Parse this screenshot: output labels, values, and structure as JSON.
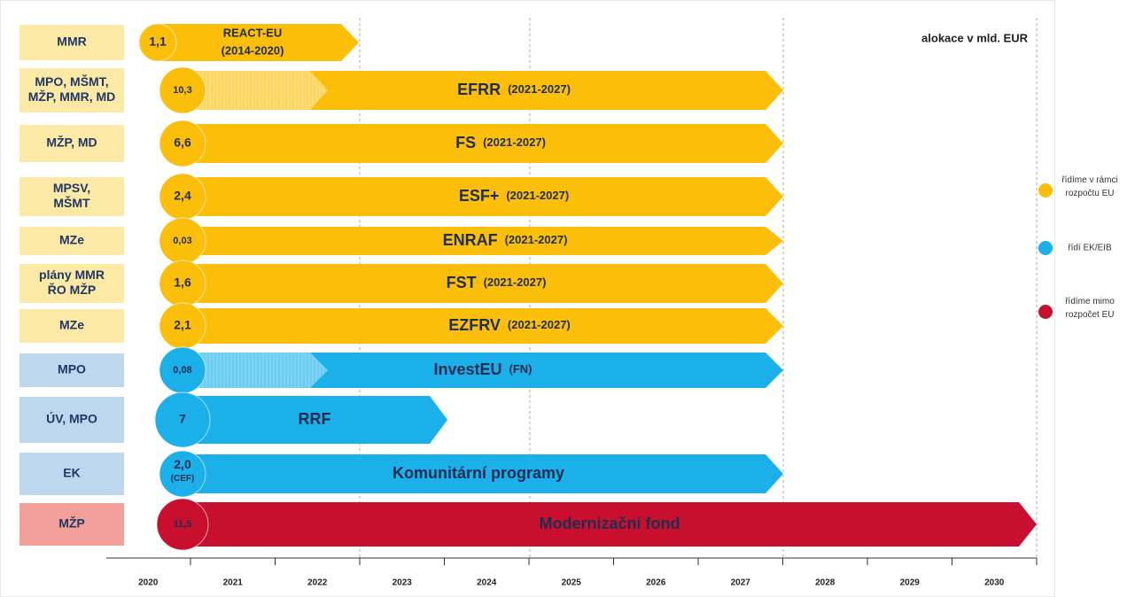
{
  "note": "alokace v mld. EUR",
  "rows": [
    {
      "agency": [
        "MMR"
      ],
      "amount": [
        "1,1"
      ],
      "program": "REACT-EU",
      "period": "(2014-2020)",
      "color": "#fbbf0a"
    },
    {
      "agency": [
        "MPO, MŠMT,",
        "MŽP, MMR, MD"
      ],
      "amount": [
        "10,3"
      ],
      "program": "EFRR",
      "period": "(2021-2027)",
      "color": "#fbbf0a"
    },
    {
      "agency": [
        "MŽP, MD"
      ],
      "amount": [
        "6,6"
      ],
      "program": "FS",
      "period": "(2021-2027)",
      "color": "#fbbf0a"
    },
    {
      "agency": [
        "MPSV,",
        "MŠMT"
      ],
      "amount": [
        "2,4"
      ],
      "program": "ESF+",
      "period": "(2021-2027)",
      "color": "#fbbf0a"
    },
    {
      "agency": [
        "MZe"
      ],
      "amount": [
        "0,03"
      ],
      "program": "ENRAF",
      "period": "(2021-2027)",
      "color": "#fbbf0a"
    },
    {
      "agency": [
        "plány MMR",
        "ŘO MŽP"
      ],
      "amount": [
        "1,6"
      ],
      "program": "FST",
      "period": "(2021-2027)",
      "color": "#fbbf0a"
    },
    {
      "agency": [
        "MZe"
      ],
      "amount": [
        "2,1"
      ],
      "program": "EZFRV",
      "period": "(2021-2027)",
      "color": "#fbbf0a"
    },
    {
      "agency": [
        "MPO"
      ],
      "amount": [
        "0,08"
      ],
      "program": "InvestEU",
      "period": "(FN)",
      "color": "#1bb0ea"
    },
    {
      "agency": [
        "ÚV, MPO"
      ],
      "amount": [
        "7"
      ],
      "program": "RRF",
      "color": "#1bb0ea"
    },
    {
      "agency": [
        "EK"
      ],
      "amount": [
        "2,0",
        "(CEF)"
      ],
      "program": "Komunitární programy",
      "color": "#1bb0ea"
    },
    {
      "agency": [
        "MŽP"
      ],
      "amount": [
        "11,5"
      ],
      "program": "Modernizační fond",
      "color": "#c8102e"
    }
  ],
  "years": [
    "2020",
    "2021",
    "2022",
    "2023",
    "2024",
    "2025",
    "2026",
    "2027",
    "2028",
    "2029",
    "2030"
  ],
  "legend": [
    {
      "lines": [
        "řídíme v rámci",
        "rozpočtu EU"
      ],
      "color": "#fbbf0a"
    },
    {
      "lines": [
        "řídí EK/EIB"
      ],
      "color": "#1bb0ea"
    },
    {
      "lines": [
        "řídíme mimo",
        "rozpočet EU"
      ],
      "color": "#c8102e"
    }
  ]
}
